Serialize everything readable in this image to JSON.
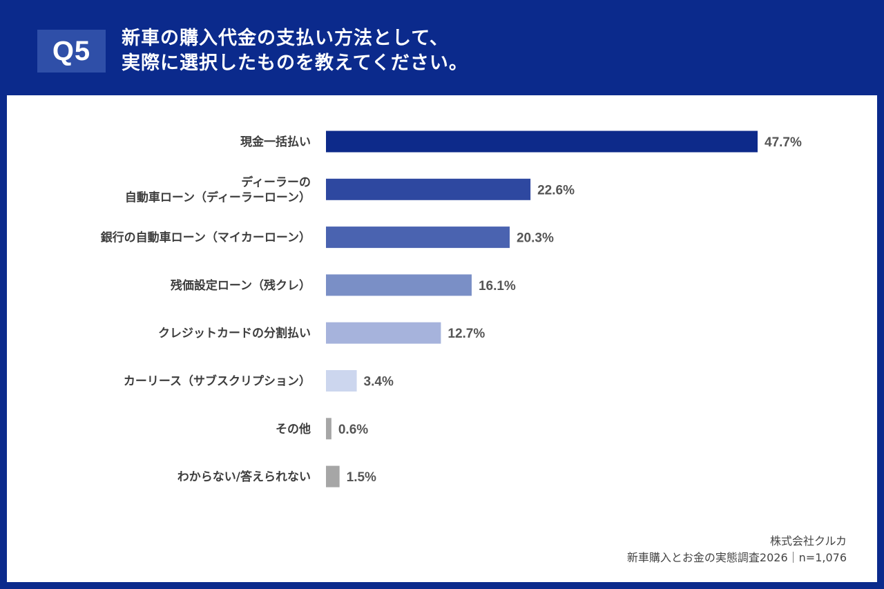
{
  "header": {
    "badge": "Q5",
    "title_line1": "新車の購入代金の支払い方法として、",
    "title_line2": "実際に選択したものを教えてください。"
  },
  "chart_data": {
    "type": "bar",
    "orientation": "horizontal",
    "unit": "%",
    "xlim": [
      0,
      50
    ],
    "categories": [
      [
        "現金一括払い"
      ],
      [
        "ディーラーの",
        "自動車ローン（ディーラーローン）"
      ],
      [
        "銀行の自動車ローン（マイカーローン）"
      ],
      [
        "残価設定ローン（残クレ）"
      ],
      [
        "クレジットカードの分割払い"
      ],
      [
        "カーリース（サブスクリプション）"
      ],
      [
        "その他"
      ],
      [
        "わからない/答えられない"
      ]
    ],
    "values": [
      47.7,
      22.6,
      20.3,
      16.1,
      12.7,
      3.4,
      0.6,
      1.5
    ],
    "value_labels": [
      "47.7%",
      "22.6%",
      "20.3%",
      "16.1%",
      "12.7%",
      "3.4%",
      "0.6%",
      "1.5%"
    ],
    "colors": [
      "#0d2a8a",
      "#2e48a0",
      "#4a63b0",
      "#7a8fc6",
      "#a6b3dc",
      "#ccd6ee",
      "#a6a6a6",
      "#a6a6a6"
    ]
  },
  "footer": {
    "company": "株式会社クルカ",
    "source": "新車購入とお金の実態調査2026｜n=1,076"
  }
}
